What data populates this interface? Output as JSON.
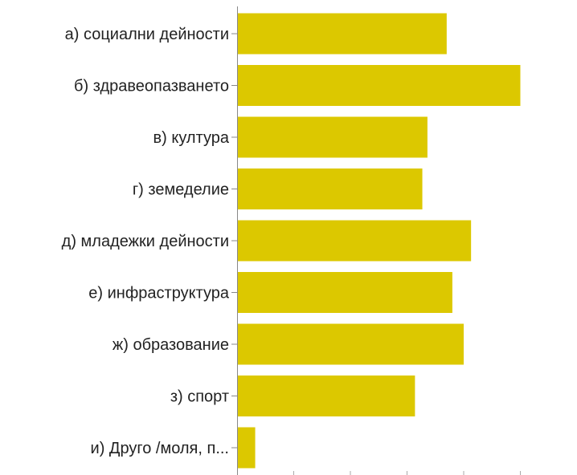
{
  "chart_data": {
    "type": "bar",
    "orientation": "horizontal",
    "categories": [
      "а) социални дейности",
      "б) здравеопазването",
      "в) култура",
      "г) земеделие",
      "д) младежки дейности",
      "е) инфраструктура",
      "ж) образование",
      "з) спорт",
      "и) Друго /моля, п..."
    ],
    "values": [
      37,
      50,
      33.6,
      32.7,
      41.3,
      38,
      40,
      31.4,
      3.2
    ],
    "xlim": [
      0,
      60
    ],
    "grid": false,
    "legend": "none",
    "colors": {
      "bar": "#dcc800",
      "axis": "#888888",
      "tick": "#aaaaaa",
      "text": "#222222"
    }
  }
}
